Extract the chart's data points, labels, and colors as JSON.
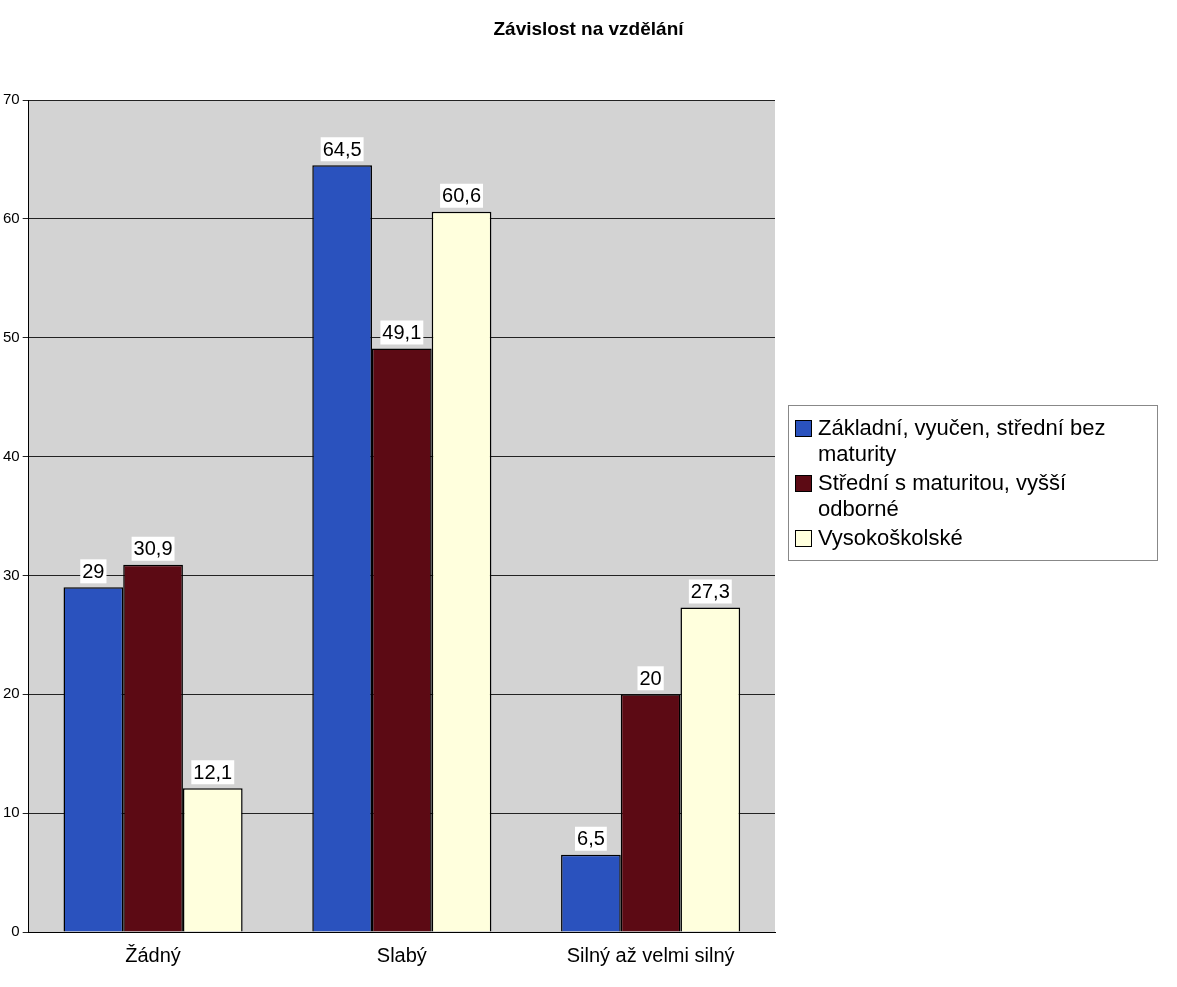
{
  "chart_data": {
    "type": "bar",
    "title": "Závislost na vzdělání",
    "categories": [
      "Žádný",
      "Slabý",
      "Silný až velmi silný"
    ],
    "series": [
      {
        "name": "Základní, vyučen, střední bez maturity",
        "color": "#2a52be",
        "values": [
          29,
          64.5,
          6.5
        ],
        "value_labels": [
          "29",
          "64,5",
          "6,5"
        ]
      },
      {
        "name": "Střední s maturitou, vyšší odborné",
        "color": "#5c0a14",
        "values": [
          30.9,
          49.1,
          20
        ],
        "value_labels": [
          "30,9",
          "49,1",
          "20"
        ]
      },
      {
        "name": "Vysokoškolské",
        "color": "#ffffdd",
        "values": [
          12.1,
          60.6,
          27.3
        ],
        "value_labels": [
          "12,1",
          "60,6",
          "27,3"
        ]
      }
    ],
    "ylim": [
      0,
      70
    ],
    "yticks": [
      0,
      10,
      20,
      30,
      40,
      50,
      60,
      70
    ],
    "grid": "y",
    "legend": "right"
  }
}
